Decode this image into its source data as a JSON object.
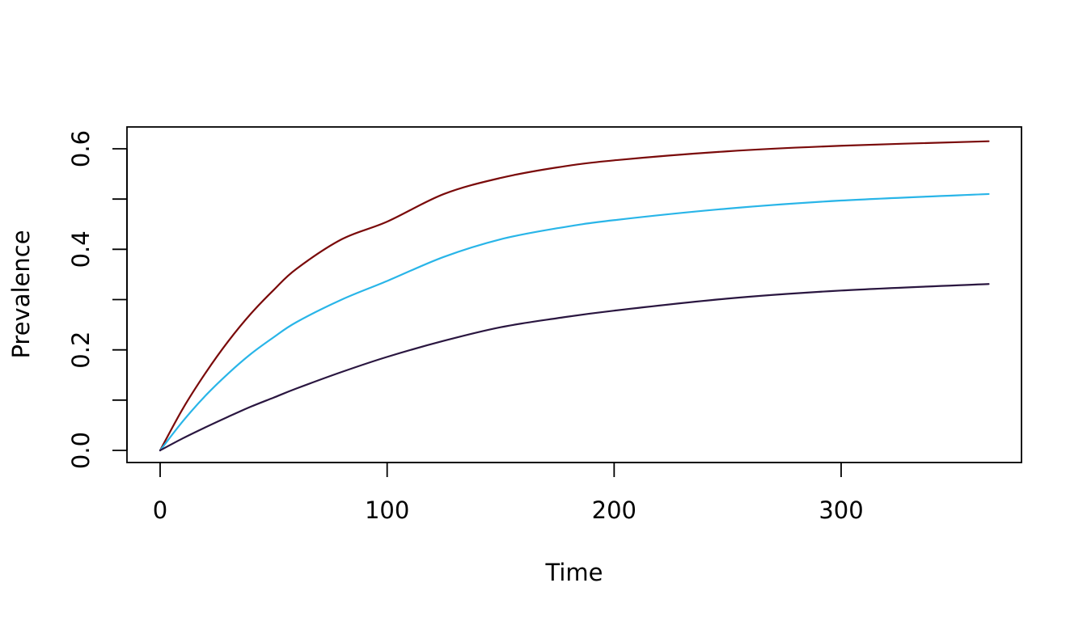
{
  "chart_data": {
    "type": "line",
    "title": "",
    "xlabel": "Time",
    "ylabel": "Prevalence",
    "xlim": [
      0,
      365
    ],
    "ylim": [
      0,
      0.62
    ],
    "x_ticks": [
      0,
      100,
      200,
      300
    ],
    "x_tick_labels": [
      "0",
      "100",
      "200",
      "300"
    ],
    "y_ticks": [
      0,
      0.1,
      0.2,
      0.3,
      0.4,
      0.5,
      0.6
    ],
    "y_tick_labels": [
      "0.0",
      "",
      "0.2",
      "",
      "0.4",
      "",
      "0.6"
    ],
    "grid": false,
    "x": [
      0,
      10,
      20,
      30,
      40,
      50,
      60,
      80,
      100,
      125,
      150,
      175,
      200,
      250,
      300,
      365
    ],
    "series": [
      {
        "color": "#7a0a0a",
        "values": [
          0,
          0.083,
          0.154,
          0.217,
          0.272,
          0.319,
          0.361,
          0.42,
          0.455,
          0.51,
          0.542,
          0.563,
          0.577,
          0.595,
          0.606,
          0.615
        ]
      },
      {
        "color": "#29b5e8",
        "values": [
          0,
          0.058,
          0.109,
          0.153,
          0.192,
          0.225,
          0.255,
          0.3,
          0.337,
          0.385,
          0.42,
          0.442,
          0.458,
          0.481,
          0.497,
          0.51
        ]
      },
      {
        "color": "#2a1640",
        "values": [
          0,
          0.024,
          0.046,
          0.067,
          0.087,
          0.105,
          0.123,
          0.156,
          0.186,
          0.218,
          0.245,
          0.263,
          0.278,
          0.302,
          0.318,
          0.331
        ]
      }
    ]
  }
}
